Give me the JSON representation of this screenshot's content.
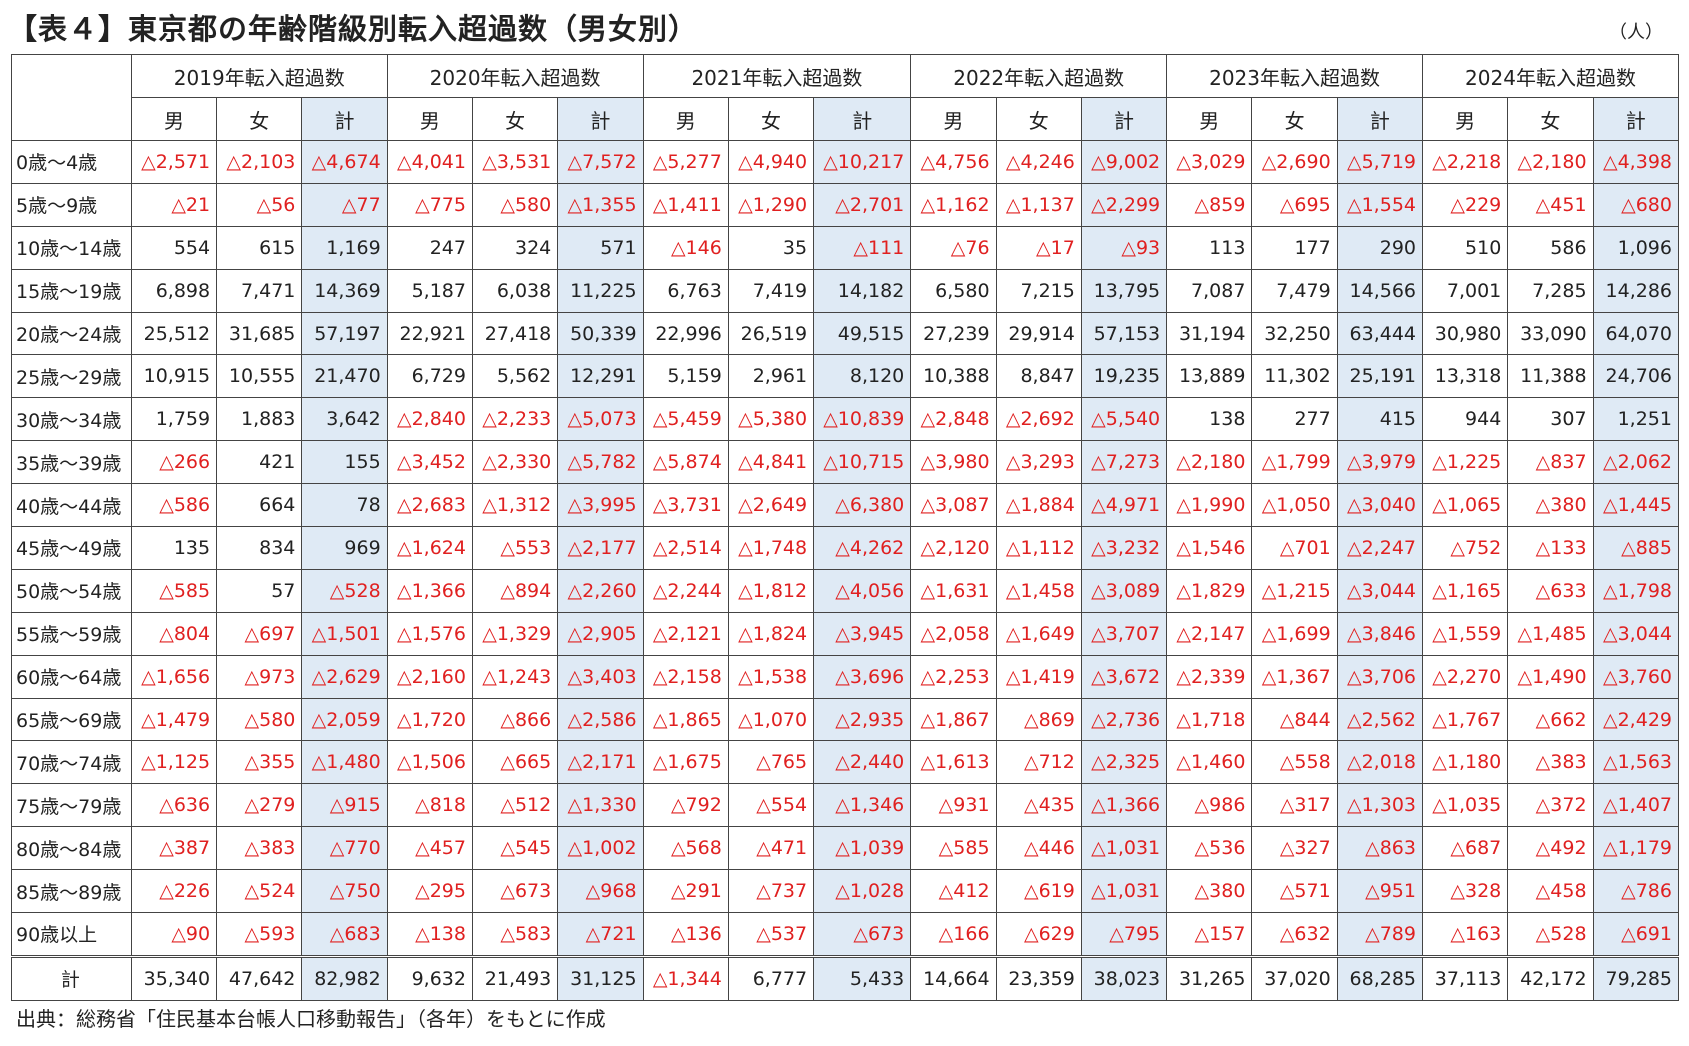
{
  "title": "【表４】東京都の年齢階級別転入超過数（男女別）",
  "unit": "（人）",
  "years": [
    "2019年転入超過数",
    "2020年転入超過数",
    "2021年転入超過数",
    "2022年転入超過数",
    "2023年転入超過数",
    "2024年転入超過数"
  ],
  "sex_labels": [
    "男",
    "女",
    "計"
  ],
  "rows": [
    {
      "age": "0歳～4歳",
      "v": [
        "△2,571",
        "△2,103",
        "△4,674",
        "△4,041",
        "△3,531",
        "△7,572",
        "△5,277",
        "△4,940",
        "△10,217",
        "△4,756",
        "△4,246",
        "△9,002",
        "△3,029",
        "△2,690",
        "△5,719",
        "△2,218",
        "△2,180",
        "△4,398"
      ]
    },
    {
      "age": "5歳～9歳",
      "v": [
        "△21",
        "△56",
        "△77",
        "△775",
        "△580",
        "△1,355",
        "△1,411",
        "△1,290",
        "△2,701",
        "△1,162",
        "△1,137",
        "△2,299",
        "△859",
        "△695",
        "△1,554",
        "△229",
        "△451",
        "△680"
      ]
    },
    {
      "age": "10歳～14歳",
      "v": [
        "554",
        "615",
        "1,169",
        "247",
        "324",
        "571",
        "△146",
        "35",
        "△111",
        "△76",
        "△17",
        "△93",
        "113",
        "177",
        "290",
        "510",
        "586",
        "1,096"
      ]
    },
    {
      "age": "15歳～19歳",
      "v": [
        "6,898",
        "7,471",
        "14,369",
        "5,187",
        "6,038",
        "11,225",
        "6,763",
        "7,419",
        "14,182",
        "6,580",
        "7,215",
        "13,795",
        "7,087",
        "7,479",
        "14,566",
        "7,001",
        "7,285",
        "14,286"
      ]
    },
    {
      "age": "20歳～24歳",
      "v": [
        "25,512",
        "31,685",
        "57,197",
        "22,921",
        "27,418",
        "50,339",
        "22,996",
        "26,519",
        "49,515",
        "27,239",
        "29,914",
        "57,153",
        "31,194",
        "32,250",
        "63,444",
        "30,980",
        "33,090",
        "64,070"
      ]
    },
    {
      "age": "25歳～29歳",
      "v": [
        "10,915",
        "10,555",
        "21,470",
        "6,729",
        "5,562",
        "12,291",
        "5,159",
        "2,961",
        "8,120",
        "10,388",
        "8,847",
        "19,235",
        "13,889",
        "11,302",
        "25,191",
        "13,318",
        "11,388",
        "24,706"
      ]
    },
    {
      "age": "30歳～34歳",
      "v": [
        "1,759",
        "1,883",
        "3,642",
        "△2,840",
        "△2,233",
        "△5,073",
        "△5,459",
        "△5,380",
        "△10,839",
        "△2,848",
        "△2,692",
        "△5,540",
        "138",
        "277",
        "415",
        "944",
        "307",
        "1,251"
      ]
    },
    {
      "age": "35歳～39歳",
      "v": [
        "△266",
        "421",
        "155",
        "△3,452",
        "△2,330",
        "△5,782",
        "△5,874",
        "△4,841",
        "△10,715",
        "△3,980",
        "△3,293",
        "△7,273",
        "△2,180",
        "△1,799",
        "△3,979",
        "△1,225",
        "△837",
        "△2,062"
      ]
    },
    {
      "age": "40歳～44歳",
      "v": [
        "△586",
        "664",
        "78",
        "△2,683",
        "△1,312",
        "△3,995",
        "△3,731",
        "△2,649",
        "△6,380",
        "△3,087",
        "△1,884",
        "△4,971",
        "△1,990",
        "△1,050",
        "△3,040",
        "△1,065",
        "△380",
        "△1,445"
      ]
    },
    {
      "age": "45歳～49歳",
      "v": [
        "135",
        "834",
        "969",
        "△1,624",
        "△553",
        "△2,177",
        "△2,514",
        "△1,748",
        "△4,262",
        "△2,120",
        "△1,112",
        "△3,232",
        "△1,546",
        "△701",
        "△2,247",
        "△752",
        "△133",
        "△885"
      ]
    },
    {
      "age": "50歳～54歳",
      "v": [
        "△585",
        "57",
        "△528",
        "△1,366",
        "△894",
        "△2,260",
        "△2,244",
        "△1,812",
        "△4,056",
        "△1,631",
        "△1,458",
        "△3,089",
        "△1,829",
        "△1,215",
        "△3,044",
        "△1,165",
        "△633",
        "△1,798"
      ]
    },
    {
      "age": "55歳～59歳",
      "v": [
        "△804",
        "△697",
        "△1,501",
        "△1,576",
        "△1,329",
        "△2,905",
        "△2,121",
        "△1,824",
        "△3,945",
        "△2,058",
        "△1,649",
        "△3,707",
        "△2,147",
        "△1,699",
        "△3,846",
        "△1,559",
        "△1,485",
        "△3,044"
      ]
    },
    {
      "age": "60歳～64歳",
      "v": [
        "△1,656",
        "△973",
        "△2,629",
        "△2,160",
        "△1,243",
        "△3,403",
        "△2,158",
        "△1,538",
        "△3,696",
        "△2,253",
        "△1,419",
        "△3,672",
        "△2,339",
        "△1,367",
        "△3,706",
        "△2,270",
        "△1,490",
        "△3,760"
      ]
    },
    {
      "age": "65歳～69歳",
      "v": [
        "△1,479",
        "△580",
        "△2,059",
        "△1,720",
        "△866",
        "△2,586",
        "△1,865",
        "△1,070",
        "△2,935",
        "△1,867",
        "△869",
        "△2,736",
        "△1,718",
        "△844",
        "△2,562",
        "△1,767",
        "△662",
        "△2,429"
      ]
    },
    {
      "age": "70歳～74歳",
      "v": [
        "△1,125",
        "△355",
        "△1,480",
        "△1,506",
        "△665",
        "△2,171",
        "△1,675",
        "△765",
        "△2,440",
        "△1,613",
        "△712",
        "△2,325",
        "△1,460",
        "△558",
        "△2,018",
        "△1,180",
        "△383",
        "△1,563"
      ]
    },
    {
      "age": "75歳～79歳",
      "v": [
        "△636",
        "△279",
        "△915",
        "△818",
        "△512",
        "△1,330",
        "△792",
        "△554",
        "△1,346",
        "△931",
        "△435",
        "△1,366",
        "△986",
        "△317",
        "△1,303",
        "△1,035",
        "△372",
        "△1,407"
      ]
    },
    {
      "age": "80歳～84歳",
      "v": [
        "△387",
        "△383",
        "△770",
        "△457",
        "△545",
        "△1,002",
        "△568",
        "△471",
        "△1,039",
        "△585",
        "△446",
        "△1,031",
        "△536",
        "△327",
        "△863",
        "△687",
        "△492",
        "△1,179"
      ]
    },
    {
      "age": "85歳～89歳",
      "v": [
        "△226",
        "△524",
        "△750",
        "△295",
        "△673",
        "△968",
        "△291",
        "△737",
        "△1,028",
        "△412",
        "△619",
        "△1,031",
        "△380",
        "△571",
        "△951",
        "△328",
        "△458",
        "△786"
      ]
    },
    {
      "age": "90歳以上",
      "v": [
        "△90",
        "△593",
        "△683",
        "△138",
        "△583",
        "△721",
        "△136",
        "△537",
        "△673",
        "△166",
        "△629",
        "△795",
        "△157",
        "△632",
        "△789",
        "△163",
        "△528",
        "△691"
      ]
    }
  ],
  "total": {
    "age": "計",
    "v": [
      "35,340",
      "47,642",
      "82,982",
      "9,632",
      "21,493",
      "31,125",
      "△1,344",
      "6,777",
      "5,433",
      "14,664",
      "23,359",
      "38,023",
      "31,265",
      "37,020",
      "68,285",
      "37,113",
      "42,172",
      "79,285"
    ]
  },
  "source": "出典：総務省「住民基本台帳人口移動報告」（各年）をもとに作成",
  "colors": {
    "negative": "#e02020",
    "total_column_bg": "#dfeaf5"
  }
}
